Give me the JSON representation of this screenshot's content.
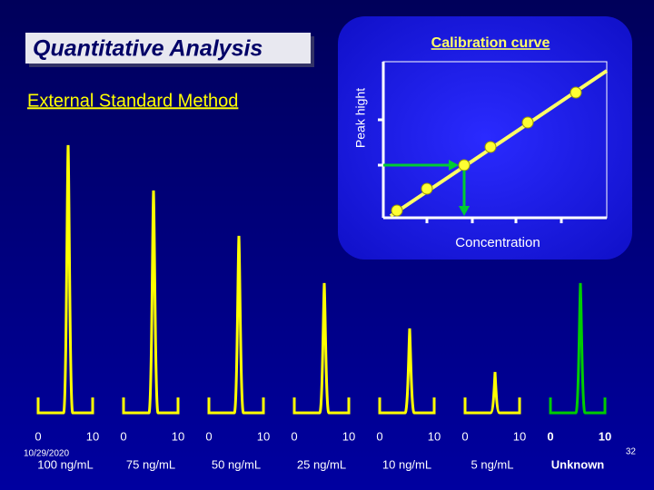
{
  "title": "Quantitative Analysis",
  "subtitle": "External Standard Method",
  "calibration": {
    "title": "Calibration curve",
    "y_label": "Peak hight",
    "x_label": "Concentration"
  },
  "chromatograms": [
    {
      "label": "100 ng/mL",
      "ticks": [
        "0",
        "10"
      ]
    },
    {
      "label": "75 ng/mL",
      "ticks": [
        "0",
        "10"
      ]
    },
    {
      "label": "50 ng/mL",
      "ticks": [
        "0",
        "10"
      ]
    },
    {
      "label": "25 ng/mL",
      "ticks": [
        "0",
        "10"
      ]
    },
    {
      "label": "10 ng/mL",
      "ticks": [
        "0",
        "10"
      ]
    },
    {
      "label": "5 ng/mL",
      "ticks": [
        "0",
        "10"
      ]
    },
    {
      "label": "Unknown",
      "ticks": [
        "0",
        "10"
      ]
    }
  ],
  "footer": {
    "date": "10/29/2020",
    "page": "32"
  }
}
